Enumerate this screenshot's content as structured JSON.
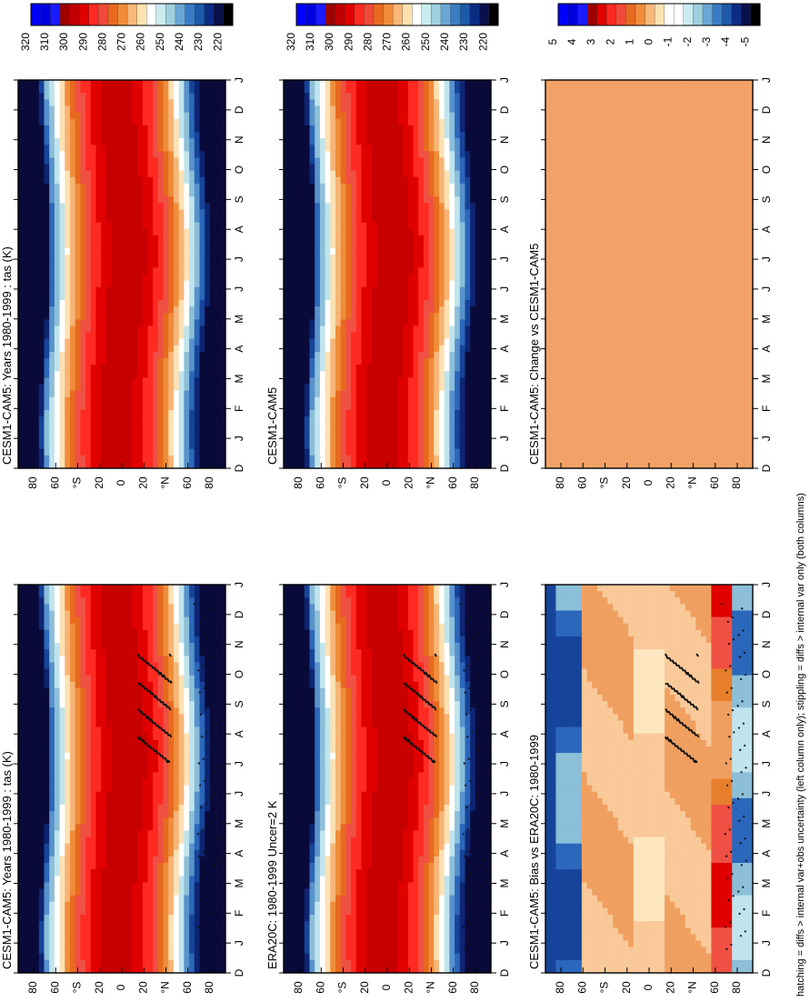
{
  "figure": {
    "footnote": "hatching = diffs > internal var+obs uncertainty (left column only); stippling = diffs > internal var only (both columns)"
  },
  "palettes": {
    "temperature": [
      "#000000",
      "#08104a",
      "#0c2c84",
      "#1d5aa8",
      "#3a7cc4",
      "#6aa6d6",
      "#9fd0de",
      "#c9ecf0",
      "#ffffff",
      "#fde2b0",
      "#f9b778",
      "#f08c3a",
      "#e86a1e",
      "#f04a3a",
      "#ff2a20",
      "#e00000",
      "#c00000",
      "#a00000",
      "#1a1aff",
      "#0000dd",
      "#0000ff"
    ],
    "difference": [
      "#000000",
      "#08104a",
      "#0c2c84",
      "#1d5aa8",
      "#3a7cc4",
      "#6aa6d6",
      "#9fd0de",
      "#c9ecf0",
      "#ffffff",
      "#fde2b0",
      "#f9b778",
      "#f08c3a",
      "#e86a1e",
      "#f04a3a",
      "#ff2a20",
      "#e00000",
      "#c00000",
      "#a00000",
      "#1a1aff",
      "#0000dd",
      "#0000ff"
    ]
  },
  "chart_data": [
    {
      "type": "heatmap",
      "title": "CESM1-CAM5: Years 1980-1999 : tas (K)",
      "x_ticks": [
        "D",
        "J",
        "F",
        "M",
        "A",
        "M",
        "J",
        "J",
        "A",
        "S",
        "O",
        "N",
        "D",
        "J"
      ],
      "y_ticks": [
        "80",
        "60",
        "°S",
        "20",
        "0",
        "20",
        "°N",
        "60",
        "80"
      ],
      "colorbar": [
        "220",
        "230",
        "240",
        "250",
        "260",
        "270",
        "280",
        "290",
        "300",
        "310",
        "320"
      ]
    },
    {
      "type": "heatmap",
      "title": "CESM1-CAM5: Years 1980-1999 : tas (K)",
      "x_ticks": [
        "D",
        "J",
        "F",
        "M",
        "A",
        "M",
        "J",
        "J",
        "A",
        "S",
        "O",
        "N",
        "D",
        "J"
      ],
      "y_ticks": [
        "80",
        "60",
        "°S",
        "20",
        "0",
        "20",
        "°N",
        "60",
        "80"
      ],
      "colorbar": [
        "220",
        "230",
        "240",
        "250",
        "260",
        "270",
        "280",
        "290",
        "300",
        "310",
        "320"
      ]
    },
    {
      "type": "heatmap",
      "title": "ERA20C: 1980-1999 Uncer=2 K",
      "x_ticks": [
        "D",
        "J",
        "F",
        "M",
        "A",
        "M",
        "J",
        "J",
        "A",
        "S",
        "O",
        "N",
        "D",
        "J"
      ],
      "y_ticks": [
        "80",
        "60",
        "°S",
        "20",
        "0",
        "20",
        "°N",
        "60",
        "80"
      ],
      "colorbar": [
        "220",
        "230",
        "240",
        "250",
        "260",
        "270",
        "280",
        "290",
        "300",
        "310",
        "320"
      ]
    },
    {
      "type": "heatmap",
      "title": "CESM1-CAM5",
      "x_ticks": [
        "D",
        "J",
        "F",
        "M",
        "A",
        "M",
        "J",
        "J",
        "A",
        "S",
        "O",
        "N",
        "D",
        "J"
      ],
      "y_ticks": [
        "80",
        "60",
        "°S",
        "20",
        "0",
        "20",
        "°N",
        "60",
        "80"
      ],
      "colorbar": [
        "220",
        "230",
        "240",
        "250",
        "260",
        "270",
        "280",
        "290",
        "300",
        "310",
        "320"
      ]
    },
    {
      "type": "heatmap",
      "title": "CESM1-CAM5: Bias vs ERA20C: 1980-1999",
      "x_ticks": [
        "D",
        "J",
        "F",
        "M",
        "A",
        "M",
        "J",
        "J",
        "A",
        "S",
        "O",
        "N",
        "D",
        "J"
      ],
      "y_ticks": [
        "80",
        "60",
        "°S",
        "20",
        "0",
        "20",
        "°N",
        "60",
        "80"
      ],
      "colorbar": [
        "-5",
        "-4",
        "-3",
        "-2",
        "-1",
        "0",
        "1",
        "2",
        "3",
        "4",
        "5"
      ]
    },
    {
      "type": "heatmap",
      "title": "CESM1-CAM5: Change vs CESM1-CAM5",
      "x_ticks": [
        "D",
        "J",
        "F",
        "M",
        "A",
        "M",
        "J",
        "J",
        "A",
        "S",
        "O",
        "N",
        "D",
        "J"
      ],
      "y_ticks": [
        "80",
        "60",
        "°S",
        "20",
        "0",
        "20",
        "°N",
        "60",
        "80"
      ],
      "colorbar": [
        "-5",
        "-4",
        "-3",
        "-2",
        "-1",
        "0",
        "1",
        "2",
        "3",
        "4",
        "5"
      ]
    }
  ]
}
